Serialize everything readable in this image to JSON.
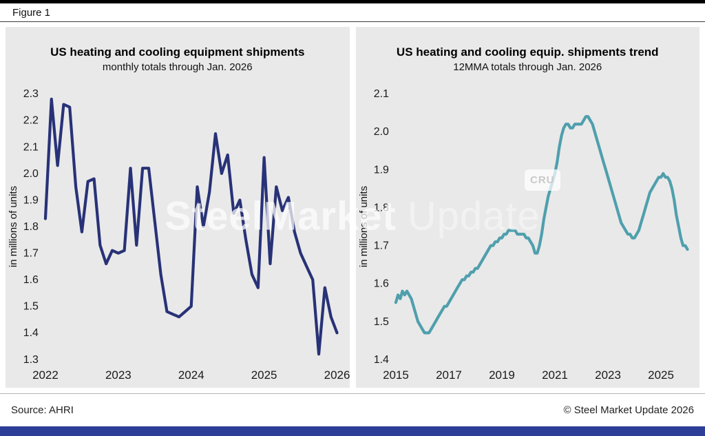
{
  "header": {
    "figure_label": "Figure 1"
  },
  "watermark": {
    "brand_bold": "SteelMarket",
    "brand_light": "Update",
    "cru": "CRU"
  },
  "footer": {
    "source": "Source: AHRI",
    "copyright": "© Steel Market Update 2026"
  },
  "colors": {
    "left_line": "#283277",
    "right_line": "#4f9fad",
    "panel_bg": "#e9e9e9",
    "bottom_bar": "#2c3e97"
  },
  "chart_data": [
    {
      "type": "line",
      "title": "US heating and cooling equipment shipments",
      "subtitle": "monthly totals through Jan. 2026",
      "ylabel": "in millions of units",
      "xlabel": "",
      "ylim": [
        1.3,
        2.3
      ],
      "ytick_step": 0.1,
      "x_start": "Jan 2022",
      "x_end": "Jan 2026",
      "x_frequency": "monthly",
      "grid": false,
      "legend": false,
      "color": "#283277",
      "stroke_width": 4.2,
      "xticks": [
        {
          "label": "2022",
          "index": 0
        },
        {
          "label": "2023",
          "index": 12
        },
        {
          "label": "2024",
          "index": 24
        },
        {
          "label": "2025",
          "index": 36
        },
        {
          "label": "2026",
          "index": 48
        }
      ],
      "values": [
        1.83,
        2.28,
        2.03,
        2.26,
        2.25,
        1.95,
        1.78,
        1.97,
        1.98,
        1.73,
        1.66,
        1.71,
        1.7,
        1.71,
        2.02,
        1.73,
        2.02,
        2.02,
        1.82,
        1.62,
        1.48,
        1.47,
        1.46,
        1.48,
        1.5,
        1.95,
        1.8,
        1.93,
        2.15,
        2.0,
        2.07,
        1.85,
        1.9,
        1.75,
        1.62,
        1.57,
        2.06,
        1.66,
        1.95,
        1.86,
        1.91,
        1.78,
        1.7,
        1.65,
        1.6,
        1.32,
        1.57,
        1.46,
        1.4
      ]
    },
    {
      "type": "line",
      "title": "US heating and cooling equip. shipments trend",
      "subtitle": "12MMA totals through Jan. 2026",
      "ylabel": "in millions of units",
      "xlabel": "",
      "ylim": [
        1.4,
        2.1
      ],
      "ytick_step": 0.1,
      "x_start": "Jan 2015",
      "x_end": "Jan 2026",
      "x_frequency": "monthly",
      "grid": false,
      "legend": false,
      "color": "#4f9fad",
      "stroke_width": 4.2,
      "xticks": [
        {
          "label": "2015",
          "index": 0
        },
        {
          "label": "2017",
          "index": 24
        },
        {
          "label": "2019",
          "index": 48
        },
        {
          "label": "2021",
          "index": 72
        },
        {
          "label": "2023",
          "index": 96
        },
        {
          "label": "2025",
          "index": 120
        }
      ],
      "values": [
        1.55,
        1.57,
        1.56,
        1.58,
        1.57,
        1.58,
        1.57,
        1.56,
        1.54,
        1.52,
        1.5,
        1.49,
        1.48,
        1.47,
        1.47,
        1.47,
        1.48,
        1.49,
        1.5,
        1.51,
        1.52,
        1.53,
        1.54,
        1.54,
        1.55,
        1.56,
        1.57,
        1.58,
        1.59,
        1.6,
        1.61,
        1.61,
        1.62,
        1.62,
        1.63,
        1.63,
        1.64,
        1.64,
        1.65,
        1.66,
        1.67,
        1.68,
        1.69,
        1.7,
        1.7,
        1.71,
        1.71,
        1.72,
        1.72,
        1.73,
        1.73,
        1.74,
        1.74,
        1.74,
        1.74,
        1.73,
        1.73,
        1.73,
        1.73,
        1.72,
        1.72,
        1.71,
        1.7,
        1.68,
        1.68,
        1.7,
        1.73,
        1.77,
        1.8,
        1.83,
        1.85,
        1.87,
        1.89,
        1.92,
        1.96,
        1.99,
        2.01,
        2.02,
        2.02,
        2.01,
        2.01,
        2.02,
        2.02,
        2.02,
        2.02,
        2.03,
        2.04,
        2.04,
        2.03,
        2.02,
        2.0,
        1.98,
        1.96,
        1.94,
        1.92,
        1.9,
        1.88,
        1.86,
        1.84,
        1.82,
        1.8,
        1.78,
        1.76,
        1.75,
        1.74,
        1.73,
        1.73,
        1.72,
        1.72,
        1.73,
        1.74,
        1.76,
        1.78,
        1.8,
        1.82,
        1.84,
        1.85,
        1.86,
        1.87,
        1.88,
        1.88,
        1.89,
        1.88,
        1.88,
        1.87,
        1.85,
        1.82,
        1.78,
        1.75,
        1.72,
        1.7,
        1.7,
        1.69
      ]
    }
  ]
}
